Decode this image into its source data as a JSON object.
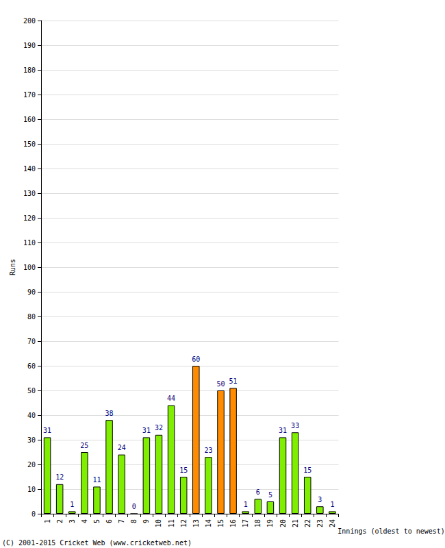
{
  "chart_data": {
    "type": "bar",
    "categories": [
      "1",
      "2",
      "3",
      "4",
      "5",
      "6",
      "7",
      "8",
      "9",
      "10",
      "11",
      "12",
      "13",
      "14",
      "15",
      "16",
      "17",
      "18",
      "19",
      "20",
      "21",
      "22",
      "23",
      "24"
    ],
    "values": [
      31,
      12,
      1,
      25,
      11,
      38,
      24,
      0,
      31,
      32,
      44,
      15,
      60,
      23,
      50,
      51,
      1,
      6,
      5,
      31,
      33,
      15,
      3,
      1
    ],
    "colors": [
      "#80ee00",
      "#80ee00",
      "#80ee00",
      "#80ee00",
      "#80ee00",
      "#80ee00",
      "#80ee00",
      "#80ee00",
      "#80ee00",
      "#80ee00",
      "#80ee00",
      "#80ee00",
      "#ff8c00",
      "#80ee00",
      "#ff8c00",
      "#ff8c00",
      "#80ee00",
      "#80ee00",
      "#80ee00",
      "#80ee00",
      "#80ee00",
      "#80ee00",
      "#80ee00",
      "#80ee00"
    ],
    "x_label": "Innings (oldest to newest)",
    "y_label": "Runs",
    "ylim": [
      0,
      200
    ],
    "yticks": [
      0,
      10,
      20,
      30,
      40,
      50,
      60,
      70,
      80,
      90,
      100,
      110,
      120,
      130,
      140,
      150,
      160,
      170,
      180,
      190,
      200
    ],
    "grid": true,
    "data_labels": true,
    "annotations": [
      "(C) 2001-2015 Cricket Web (www.cricketweb.net)"
    ]
  }
}
